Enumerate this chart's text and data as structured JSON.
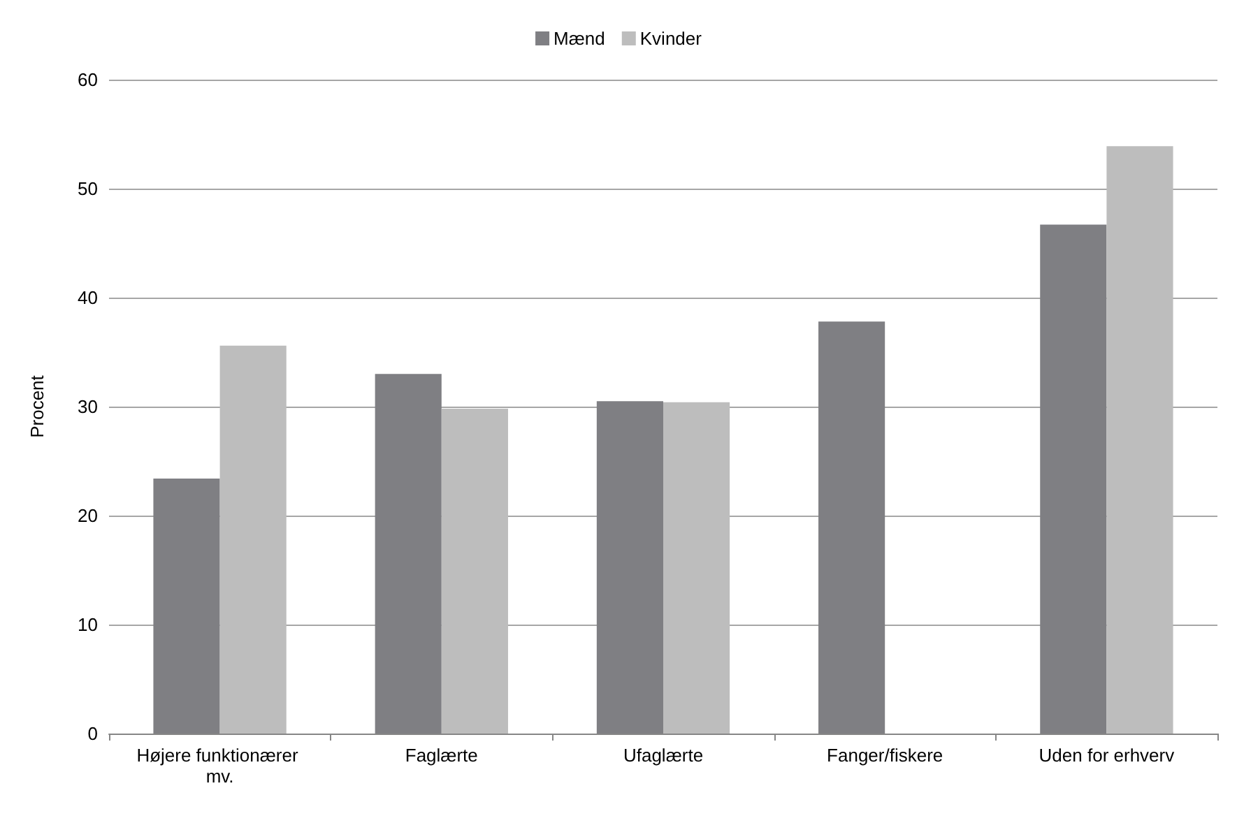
{
  "chart_data": {
    "type": "bar",
    "ylabel": "Procent",
    "categories": [
      "Højere funktionærer mv.",
      "Faglærte",
      "Ufaglærte",
      "Fanger/fiskere",
      "Uden for erhverv"
    ],
    "series": [
      {
        "name": "Mænd",
        "color": "#7f7f83",
        "values": [
          23.4,
          33.0,
          30.5,
          37.8,
          46.7
        ]
      },
      {
        "name": "Kvinder",
        "color": "#bdbdbd",
        "values": [
          35.6,
          29.8,
          30.4,
          null,
          53.9
        ]
      }
    ],
    "ylim": [
      0,
      60
    ],
    "yticks": [
      0,
      10,
      20,
      30,
      40,
      50,
      60
    ],
    "grid": "y",
    "legend": "top"
  }
}
